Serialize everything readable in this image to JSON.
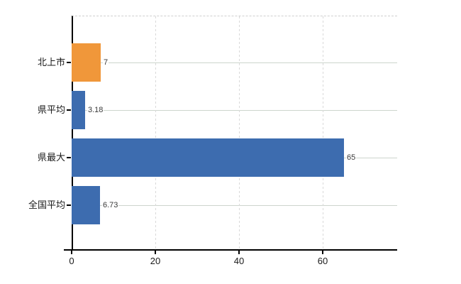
{
  "chart_data": {
    "type": "bar",
    "orientation": "horizontal",
    "title": "",
    "categories": [
      "北上市",
      "県平均",
      "県最大",
      "全国平均"
    ],
    "values": [
      7,
      3.18,
      65,
      6.73
    ],
    "value_labels": [
      "7",
      "3.18",
      "65",
      "6.73"
    ],
    "bar_colors": [
      "#F0973A",
      "#3D6CAF",
      "#3D6CAF",
      "#3D6CAF"
    ],
    "x_ticks": [
      0,
      20,
      40,
      60
    ],
    "x_tick_labels": [
      "0",
      "20",
      "40",
      "60"
    ],
    "xlim": [
      0,
      77.8
    ],
    "xlabel": "",
    "ylabel": "",
    "grid": "on",
    "legend": "none"
  },
  "colors": {
    "bar_orange": "#F0973A",
    "bar_blue": "#3D6CAF",
    "axis_line": "#000000",
    "h_gridline": "#cdd5cd",
    "v_gridline": "#d9d9d9",
    "top_border": "#cfcfcf",
    "tick_text": "#1a1a1a",
    "value_text": "#3a3a3a",
    "background": "#ffffff"
  }
}
